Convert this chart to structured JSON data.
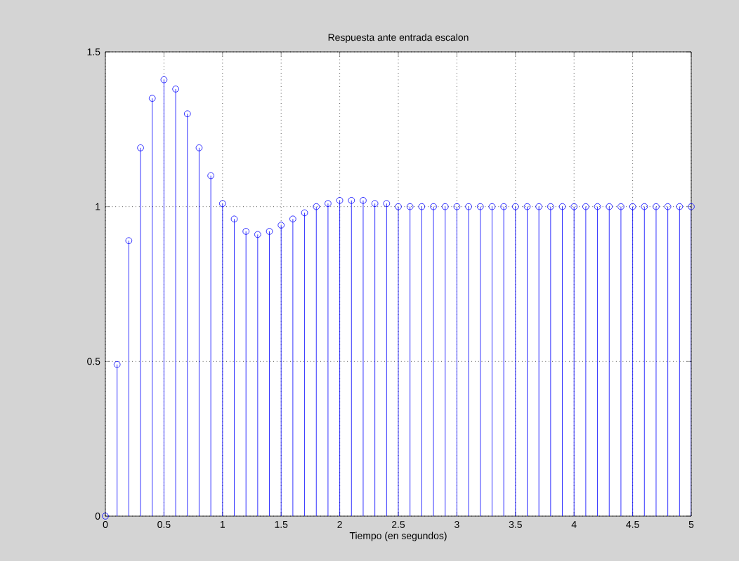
{
  "chart_data": {
    "type": "lollipop",
    "title": "Respuesta ante entrada escalon",
    "xlabel": "Tiempo (en segundos)",
    "x": [
      0,
      0.1,
      0.2,
      0.3,
      0.4,
      0.5,
      0.6,
      0.7,
      0.8,
      0.9,
      1.0,
      1.1,
      1.2,
      1.3,
      1.4,
      1.5,
      1.6,
      1.7,
      1.8,
      1.9,
      2.0,
      2.1,
      2.2,
      2.3,
      2.4,
      2.5,
      2.6,
      2.7,
      2.8,
      2.9,
      3.0,
      3.1,
      3.2,
      3.3,
      3.4,
      3.5,
      3.6,
      3.7,
      3.8,
      3.9,
      4.0,
      4.1,
      4.2,
      4.3,
      4.4,
      4.5,
      4.6,
      4.7,
      4.8,
      4.9,
      5.0
    ],
    "values": [
      0,
      0.49,
      0.89,
      1.19,
      1.35,
      1.41,
      1.38,
      1.3,
      1.19,
      1.1,
      1.01,
      0.96,
      0.92,
      0.91,
      0.92,
      0.94,
      0.96,
      0.98,
      1.0,
      1.01,
      1.02,
      1.02,
      1.02,
      1.01,
      1.01,
      1.0,
      1.0,
      1.0,
      1.0,
      1.0,
      1.0,
      1.0,
      1.0,
      1.0,
      1.0,
      1.0,
      1.0,
      1.0,
      1.0,
      1.0,
      1.0,
      1.0,
      1.0,
      1.0,
      1.0,
      1.0,
      1.0,
      1.0,
      1.0,
      1.0,
      1.0
    ],
    "color": "#0000ff",
    "marker": "circle",
    "grid": true,
    "xlim": [
      0,
      5
    ],
    "xticks": [
      0,
      0.5,
      1,
      1.5,
      2,
      2.5,
      3,
      3.5,
      4,
      4.5,
      5
    ],
    "ylim": [
      0,
      1.5
    ],
    "yticks": [
      0,
      0.5,
      1,
      1.5
    ]
  }
}
